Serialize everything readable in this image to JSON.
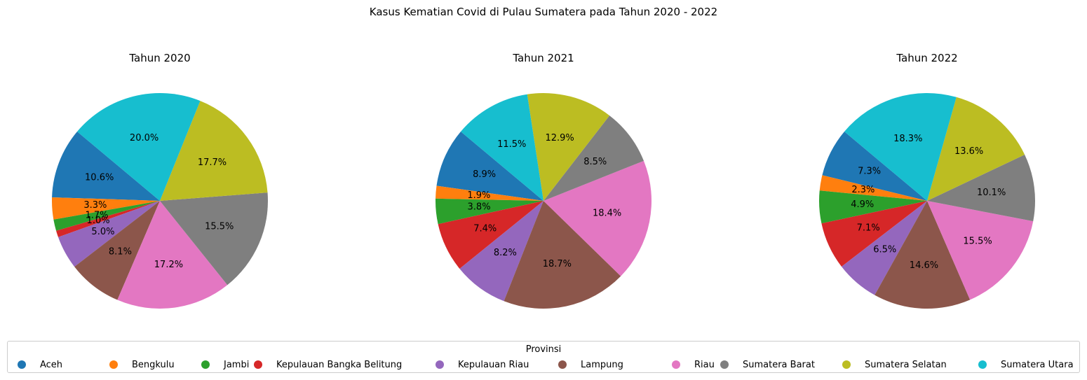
{
  "figure": {
    "suptitle": "Kasus Kematian Covid di Pulau Sumatera pada Tahun 2020 - 2022"
  },
  "legend": {
    "title": "Provinsi",
    "placement": "bottom"
  },
  "chart_data": [
    {
      "type": "pie",
      "title": "Tahun 2020",
      "labels": [
        "Aceh",
        "Bengkulu",
        "Jambi",
        "Kepulauan Bangka Belitung",
        "Kepulauan Riau",
        "Lampung",
        "Riau",
        "Sumatera Barat",
        "Sumatera Selatan",
        "Sumatera Utara"
      ],
      "values": [
        10.6,
        3.3,
        1.7,
        1.0,
        5.0,
        8.1,
        17.2,
        15.5,
        17.7,
        20.0
      ],
      "value_labels": [
        "10.6%",
        "3.3%",
        "1.7%",
        "1.0%",
        "5.0%",
        "8.1%",
        "17.2%",
        "15.5%",
        "17.7%",
        "20.0%"
      ],
      "colors": [
        "#1f77b4",
        "#ff7f0e",
        "#2ca02c",
        "#d62728",
        "#9467bd",
        "#8c564b",
        "#e377c2",
        "#7f7f7f",
        "#bcbd22",
        "#17becf"
      ],
      "start_angle_deg": 140,
      "direction": "counterclockwise"
    },
    {
      "type": "pie",
      "title": "Tahun 2021",
      "labels": [
        "Aceh",
        "Bengkulu",
        "Jambi",
        "Kepulauan Bangka Belitung",
        "Kepulauan Riau",
        "Lampung",
        "Riau",
        "Sumatera Barat",
        "Sumatera Selatan",
        "Sumatera Utara"
      ],
      "values": [
        8.9,
        1.9,
        3.8,
        7.4,
        8.2,
        18.7,
        18.4,
        8.5,
        12.9,
        11.5
      ],
      "value_labels": [
        "8.9%",
        "1.9%",
        "3.8%",
        "7.4%",
        "8.2%",
        "18.7%",
        "18.4%",
        "8.5%",
        "12.9%",
        "11.5%"
      ],
      "colors": [
        "#1f77b4",
        "#ff7f0e",
        "#2ca02c",
        "#d62728",
        "#9467bd",
        "#8c564b",
        "#e377c2",
        "#7f7f7f",
        "#bcbd22",
        "#17becf"
      ],
      "start_angle_deg": 140,
      "direction": "counterclockwise"
    },
    {
      "type": "pie",
      "title": "Tahun 2022",
      "labels": [
        "Aceh",
        "Bengkulu",
        "Jambi",
        "Kepulauan Bangka Belitung",
        "Kepulauan Riau",
        "Lampung",
        "Riau",
        "Sumatera Barat",
        "Sumatera Selatan",
        "Sumatera Utara"
      ],
      "values": [
        7.3,
        2.3,
        4.9,
        7.1,
        6.5,
        14.6,
        15.5,
        10.1,
        13.6,
        18.3
      ],
      "value_labels": [
        "7.3%",
        "2.3%",
        "4.9%",
        "7.1%",
        "6.5%",
        "14.6%",
        "15.5%",
        "10.1%",
        "13.6%",
        "18.3%"
      ],
      "colors": [
        "#1f77b4",
        "#ff7f0e",
        "#2ca02c",
        "#d62728",
        "#9467bd",
        "#8c564b",
        "#e377c2",
        "#7f7f7f",
        "#bcbd22",
        "#17becf"
      ],
      "start_angle_deg": 140,
      "direction": "counterclockwise"
    }
  ]
}
